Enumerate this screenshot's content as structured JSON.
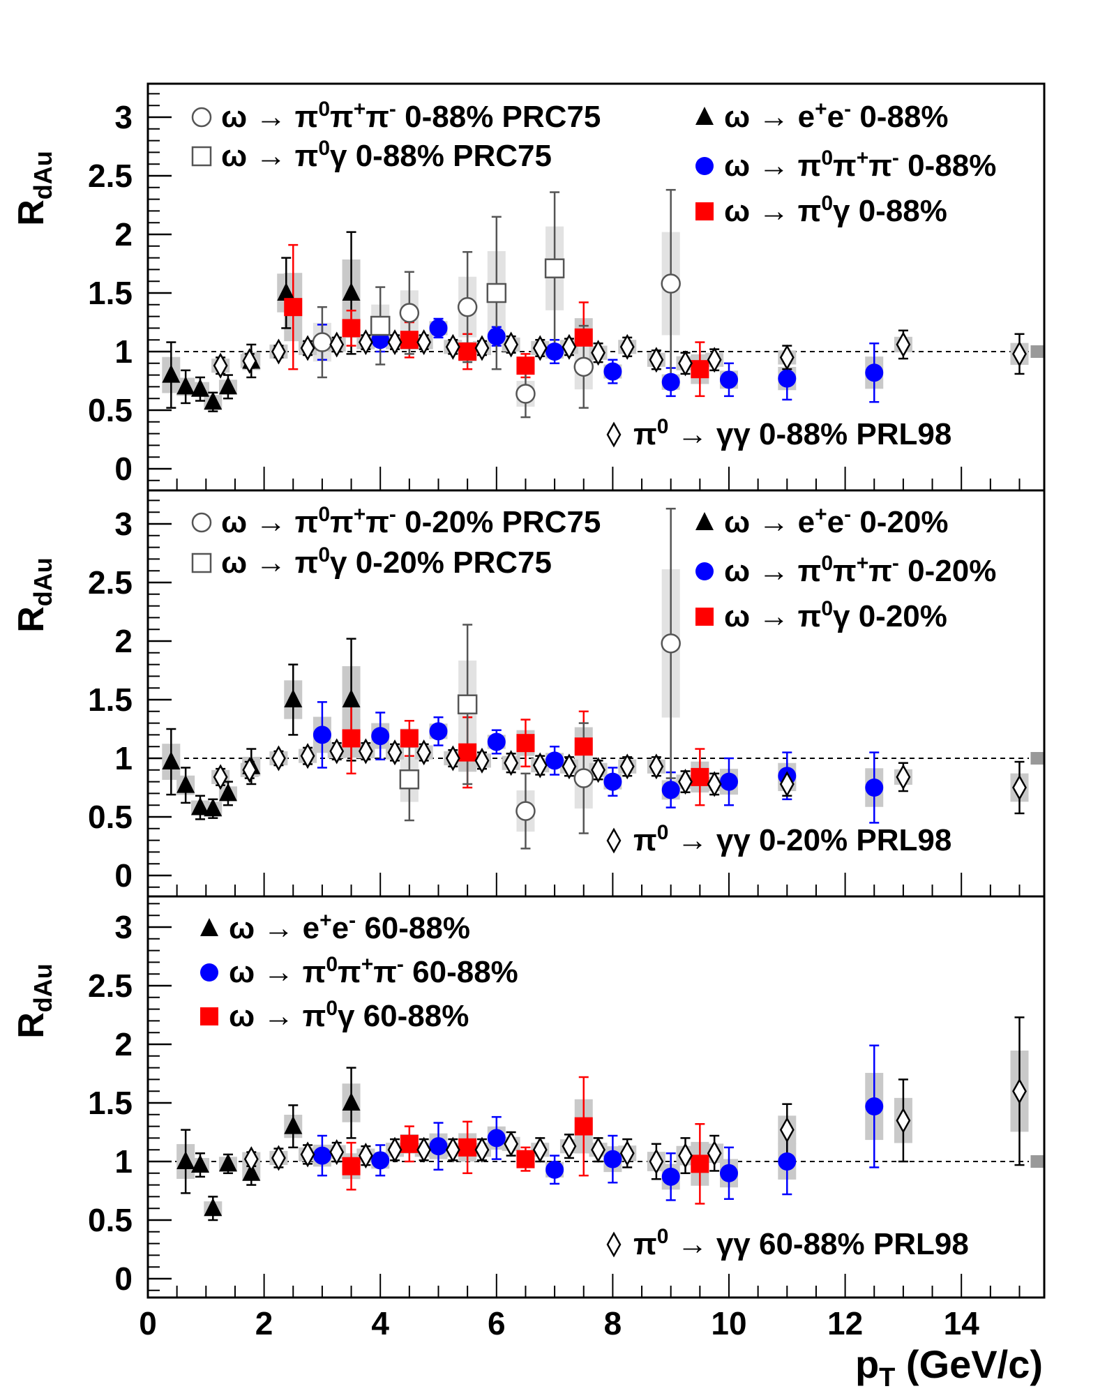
{
  "chart_data": [
    {
      "type": "scatter",
      "ylabel": "R_dAu",
      "xlim": [
        0,
        15.5
      ],
      "ylim": [
        -0.2,
        3.3
      ],
      "reference_line": 1,
      "legend": [
        {
          "text": "ω → π⁰π⁺π⁻ 0-88% PRC75",
          "marker": "open-circle"
        },
        {
          "text": "ω → π⁰γ 0-88% PRC75",
          "marker": "open-square"
        },
        {
          "text": "ω → e⁺e⁻ 0-88%",
          "marker": "triangle"
        },
        {
          "text": "ω → π⁰π⁺π⁻ 0-88%",
          "marker": "circle"
        },
        {
          "text": "ω → π⁰γ 0-88%",
          "marker": "square"
        },
        {
          "text": "π⁰ → γγ 0-88% PRL98",
          "marker": "diamond"
        }
      ],
      "series": [
        {
          "marker": "triangle",
          "color": "#000000",
          "x": [
            0.4,
            0.65,
            0.9,
            1.12,
            1.38,
            1.78,
            2.38,
            3.5
          ],
          "y": [
            0.8,
            0.7,
            0.68,
            0.57,
            0.7,
            0.92,
            1.5,
            1.5
          ],
          "err": [
            0.28,
            0.14,
            0.1,
            0.08,
            0.1,
            0.14,
            0.3,
            0.52
          ]
        },
        {
          "marker": "circle",
          "color": "#0000ff",
          "x": [
            3.0,
            4.0,
            5.0,
            6.0,
            7.0,
            8.0,
            9.0,
            10.0,
            11.0,
            12.5
          ],
          "y": [
            1.08,
            1.1,
            1.2,
            1.13,
            1.0,
            0.83,
            0.74,
            0.76,
            0.77,
            0.82
          ],
          "err": [
            0.15,
            0.1,
            0.08,
            0.08,
            0.1,
            0.1,
            0.12,
            0.14,
            0.18,
            0.25
          ]
        },
        {
          "marker": "square",
          "color": "#ff0000",
          "x": [
            2.5,
            3.5,
            4.5,
            5.5,
            6.5,
            7.5,
            9.5
          ],
          "y": [
            1.38,
            1.2,
            1.1,
            1.0,
            0.88,
            1.12,
            0.85
          ],
          "err": [
            0.53,
            0.15,
            0.15,
            0.15,
            0.1,
            0.3,
            0.23
          ]
        },
        {
          "marker": "open-circle",
          "color": "#555555",
          "x": [
            3.0,
            4.5,
            5.5,
            6.5,
            7.5,
            9.0
          ],
          "y": [
            1.08,
            1.33,
            1.38,
            0.64,
            0.87,
            1.58
          ],
          "err": [
            0.3,
            0.35,
            0.47,
            0.2,
            0.35,
            0.8
          ]
        },
        {
          "marker": "open-square",
          "color": "#555555",
          "x": [
            4.0,
            6.0,
            7.0
          ],
          "y": [
            1.22,
            1.5,
            1.71
          ],
          "err": [
            0.33,
            0.65,
            0.65
          ]
        },
        {
          "marker": "diamond",
          "color": "#000000",
          "x": [
            1.25,
            1.75,
            2.25,
            2.75,
            3.25,
            3.75,
            4.25,
            4.75,
            5.25,
            5.75,
            6.25,
            6.75,
            7.25,
            7.75,
            8.25,
            8.75,
            9.25,
            9.75,
            11.0,
            13.0,
            15.0
          ],
          "y": [
            0.88,
            0.92,
            1.0,
            1.03,
            1.06,
            1.08,
            1.08,
            1.08,
            1.04,
            1.03,
            1.06,
            1.03,
            1.04,
            0.99,
            1.04,
            0.93,
            0.9,
            0.93,
            0.95,
            1.06,
            0.98
          ],
          "err": [
            0.07,
            0.06,
            0.05,
            0.06,
            0.06,
            0.06,
            0.06,
            0.06,
            0.06,
            0.06,
            0.07,
            0.07,
            0.07,
            0.08,
            0.08,
            0.08,
            0.09,
            0.09,
            0.1,
            0.12,
            0.17
          ]
        }
      ]
    },
    {
      "type": "scatter",
      "ylabel": "R_dAu",
      "xlim": [
        0,
        15.5
      ],
      "ylim": [
        -0.2,
        3.3
      ],
      "reference_line": 1,
      "legend": [
        {
          "text": "ω → π⁰π⁺π⁻ 0-20% PRC75",
          "marker": "open-circle"
        },
        {
          "text": "ω → π⁰γ 0-20% PRC75",
          "marker": "open-square"
        },
        {
          "text": "ω → e⁺e⁻ 0-20%",
          "marker": "triangle"
        },
        {
          "text": "ω → π⁰π⁺π⁻ 0-20%",
          "marker": "circle"
        },
        {
          "text": "ω → π⁰γ 0-20%",
          "marker": "square"
        },
        {
          "text": "π⁰ → γγ 0-20% PRL98",
          "marker": "diamond"
        }
      ],
      "series": [
        {
          "marker": "triangle",
          "color": "#000000",
          "x": [
            0.4,
            0.65,
            0.9,
            1.12,
            1.38,
            1.78,
            2.5,
            3.5
          ],
          "y": [
            0.97,
            0.77,
            0.58,
            0.57,
            0.7,
            0.93,
            1.5,
            1.5
          ],
          "err": [
            0.28,
            0.15,
            0.1,
            0.08,
            0.1,
            0.15,
            0.3,
            0.52
          ]
        },
        {
          "marker": "circle",
          "color": "#0000ff",
          "x": [
            3.0,
            4.0,
            5.0,
            6.0,
            7.0,
            8.0,
            9.0,
            10.0,
            11.0,
            12.5
          ],
          "y": [
            1.2,
            1.19,
            1.23,
            1.14,
            0.98,
            0.8,
            0.73,
            0.8,
            0.85,
            0.75
          ],
          "err": [
            0.28,
            0.2,
            0.12,
            0.1,
            0.12,
            0.12,
            0.15,
            0.2,
            0.2,
            0.3
          ]
        },
        {
          "marker": "square",
          "color": "#ff0000",
          "x": [
            3.5,
            4.5,
            5.5,
            6.5,
            7.5,
            9.5
          ],
          "y": [
            1.17,
            1.17,
            1.05,
            1.13,
            1.1,
            0.84
          ],
          "err": [
            0.3,
            0.15,
            0.3,
            0.2,
            0.3,
            0.24
          ]
        },
        {
          "marker": "open-circle",
          "color": "#555555",
          "x": [
            6.5,
            7.5,
            9.0
          ],
          "y": [
            0.55,
            0.83,
            1.98
          ],
          "err": [
            0.32,
            0.47,
            1.15
          ]
        },
        {
          "marker": "open-square",
          "color": "#555555",
          "x": [
            4.5,
            5.5
          ],
          "y": [
            0.82,
            1.46
          ],
          "err": [
            0.35,
            0.68
          ]
        },
        {
          "marker": "diamond",
          "color": "#000000",
          "x": [
            1.25,
            1.75,
            2.25,
            2.75,
            3.25,
            3.75,
            4.25,
            4.75,
            5.25,
            5.75,
            6.25,
            6.75,
            7.25,
            7.75,
            8.25,
            8.75,
            9.25,
            9.75,
            11.0,
            13.0,
            15.0
          ],
          "y": [
            0.84,
            0.9,
            1.0,
            1.02,
            1.06,
            1.06,
            1.05,
            1.05,
            1.0,
            0.98,
            0.96,
            0.94,
            0.93,
            0.9,
            0.93,
            0.93,
            0.8,
            0.78,
            0.78,
            0.84,
            0.75
          ],
          "err": [
            0.07,
            0.07,
            0.06,
            0.07,
            0.07,
            0.07,
            0.07,
            0.07,
            0.07,
            0.07,
            0.08,
            0.08,
            0.08,
            0.08,
            0.08,
            0.08,
            0.09,
            0.09,
            0.1,
            0.12,
            0.22
          ]
        }
      ]
    },
    {
      "type": "scatter",
      "ylabel": "R_dAu",
      "xlabel": "p_T (GeV/c)",
      "xlim": [
        0,
        15.5
      ],
      "ylim": [
        -0.2,
        3.3
      ],
      "xticks": [
        0,
        2,
        4,
        6,
        8,
        10,
        12,
        14
      ],
      "reference_line": 1,
      "legend": [
        {
          "text": "ω → e⁺e⁻ 60-88%",
          "marker": "triangle"
        },
        {
          "text": "ω → π⁰π⁺π⁻ 60-88%",
          "marker": "circle"
        },
        {
          "text": "ω → π⁰γ 60-88%",
          "marker": "square"
        },
        {
          "text": "π⁰ → γγ 60-88% PRL98",
          "marker": "diamond"
        }
      ],
      "series": [
        {
          "marker": "triangle",
          "color": "#000000",
          "x": [
            0.65,
            0.9,
            1.12,
            1.38,
            1.78,
            2.5,
            3.5
          ],
          "y": [
            1.0,
            0.97,
            0.6,
            0.98,
            0.9,
            1.3,
            1.5
          ],
          "err": [
            0.27,
            0.1,
            0.1,
            0.08,
            0.1,
            0.18,
            0.3
          ]
        },
        {
          "marker": "circle",
          "color": "#0000ff",
          "x": [
            3.0,
            4.0,
            5.0,
            6.0,
            7.0,
            8.0,
            9.0,
            10.0,
            11.0,
            12.5
          ],
          "y": [
            1.05,
            1.01,
            1.13,
            1.2,
            0.93,
            1.02,
            0.87,
            0.9,
            1.0,
            1.47
          ],
          "err": [
            0.17,
            0.13,
            0.2,
            0.18,
            0.12,
            0.2,
            0.2,
            0.22,
            0.28,
            0.52
          ]
        },
        {
          "marker": "square",
          "color": "#ff0000",
          "x": [
            3.5,
            4.5,
            5.5,
            6.5,
            7.5,
            9.5
          ],
          "y": [
            0.96,
            1.15,
            1.12,
            1.02,
            1.3,
            0.98
          ],
          "err": [
            0.2,
            0.15,
            0.22,
            0.1,
            0.42,
            0.34
          ]
        },
        {
          "marker": "diamond",
          "color": "#000000",
          "x": [
            1.78,
            2.25,
            2.75,
            3.25,
            3.75,
            4.25,
            4.75,
            5.25,
            5.75,
            6.25,
            6.75,
            7.25,
            7.75,
            8.25,
            8.75,
            9.25,
            9.75,
            11.0,
            13.0,
            15.0
          ],
          "y": [
            1.02,
            1.03,
            1.06,
            1.08,
            1.05,
            1.1,
            1.1,
            1.1,
            1.1,
            1.15,
            1.1,
            1.13,
            1.1,
            1.07,
            1.0,
            1.05,
            1.07,
            1.27,
            1.35,
            1.6
          ],
          "err": [
            0.06,
            0.08,
            0.08,
            0.08,
            0.08,
            0.09,
            0.09,
            0.09,
            0.09,
            0.1,
            0.1,
            0.1,
            0.1,
            0.12,
            0.15,
            0.15,
            0.15,
            0.22,
            0.35,
            0.63
          ]
        }
      ]
    }
  ]
}
